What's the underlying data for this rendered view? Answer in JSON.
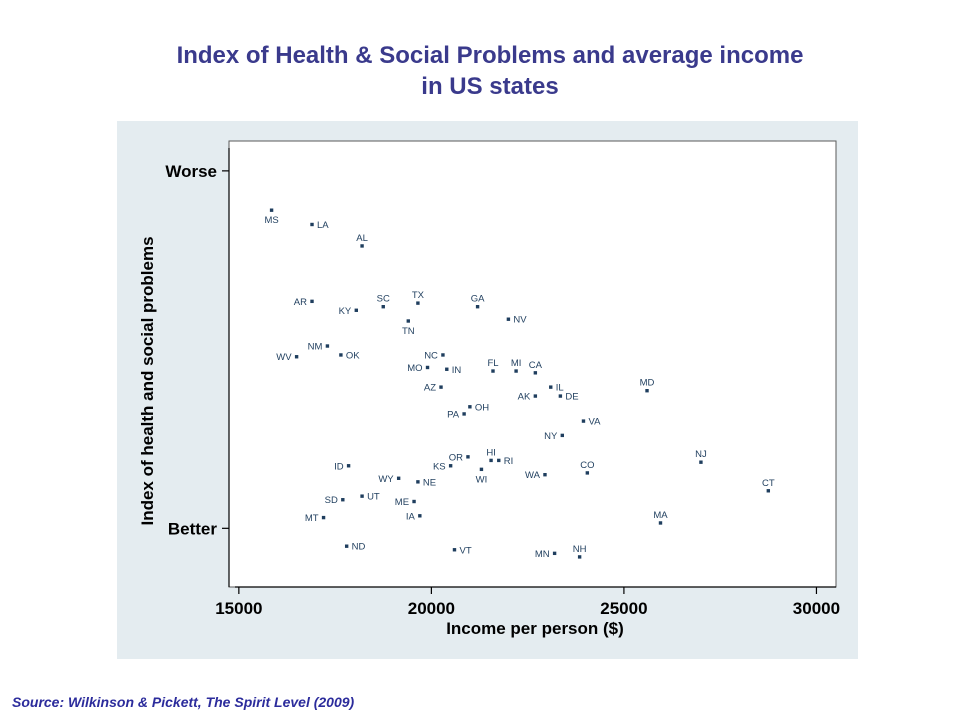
{
  "title": {
    "line1": "Index of Health & Social Problems and average income",
    "line2": "in US states"
  },
  "source": "Source: Wilkinson & Pickett, The Spirit Level (2009)",
  "colors": {
    "title": "#3a3a8c",
    "panel": "#e4ecf0",
    "plot": "#ffffff",
    "point": "#1f3e5e",
    "source": "#2c2c9c"
  },
  "chart_data": {
    "type": "scatter",
    "title": "Index of Health & Social Problems and average income in US states",
    "xlabel": "Income per person ($)",
    "ylabel": "Index of health and social problems",
    "xlim": [
      14900,
      30300
    ],
    "ylim": [
      -1.25,
      1.1
    ],
    "x_ticks": [
      15000,
      20000,
      25000,
      30000
    ],
    "x_tick_labels": [
      "15000",
      "20000",
      "25000",
      "30000"
    ],
    "y_ticks": [
      1,
      -1
    ],
    "y_tick_labels": [
      "Worse",
      "Better"
    ],
    "grid": false,
    "legend": "none",
    "points": [
      {
        "label": "MS",
        "x": 15850,
        "y": 0.78
      },
      {
        "label": "LA",
        "x": 16900,
        "y": 0.7
      },
      {
        "label": "AL",
        "x": 18200,
        "y": 0.58
      },
      {
        "label": "AR",
        "x": 16900,
        "y": 0.27
      },
      {
        "label": "KY",
        "x": 18050,
        "y": 0.22
      },
      {
        "label": "SC",
        "x": 18750,
        "y": 0.24
      },
      {
        "label": "TX",
        "x": 19650,
        "y": 0.26
      },
      {
        "label": "GA",
        "x": 21200,
        "y": 0.24
      },
      {
        "label": "NV",
        "x": 22000,
        "y": 0.17
      },
      {
        "label": "TN",
        "x": 19400,
        "y": 0.16
      },
      {
        "label": "NM",
        "x": 17300,
        "y": 0.02
      },
      {
        "label": "WV",
        "x": 16500,
        "y": -0.04
      },
      {
        "label": "OK",
        "x": 17650,
        "y": -0.03
      },
      {
        "label": "NC",
        "x": 20300,
        "y": -0.03
      },
      {
        "label": "MO",
        "x": 19900,
        "y": -0.1
      },
      {
        "label": "IN",
        "x": 20400,
        "y": -0.11
      },
      {
        "label": "FL",
        "x": 21600,
        "y": -0.12
      },
      {
        "label": "MI",
        "x": 22200,
        "y": -0.12
      },
      {
        "label": "CA",
        "x": 22700,
        "y": -0.13
      },
      {
        "label": "MD",
        "x": 25600,
        "y": -0.23
      },
      {
        "label": "AZ",
        "x": 20250,
        "y": -0.21
      },
      {
        "label": "IL",
        "x": 23100,
        "y": -0.21
      },
      {
        "label": "AK",
        "x": 22700,
        "y": -0.26
      },
      {
        "label": "DE",
        "x": 23350,
        "y": -0.26
      },
      {
        "label": "OH",
        "x": 21000,
        "y": -0.32
      },
      {
        "label": "PA",
        "x": 20850,
        "y": -0.36
      },
      {
        "label": "VA",
        "x": 23950,
        "y": -0.4
      },
      {
        "label": "NY",
        "x": 23400,
        "y": -0.48
      },
      {
        "label": "NJ",
        "x": 27000,
        "y": -0.63
      },
      {
        "label": "OR",
        "x": 20950,
        "y": -0.6
      },
      {
        "label": "HI",
        "x": 21550,
        "y": -0.62
      },
      {
        "label": "RI",
        "x": 21750,
        "y": -0.62
      },
      {
        "label": "ID",
        "x": 17850,
        "y": -0.65
      },
      {
        "label": "KS",
        "x": 20500,
        "y": -0.65
      },
      {
        "label": "WI",
        "x": 21300,
        "y": -0.67
      },
      {
        "label": "CO",
        "x": 24050,
        "y": -0.69
      },
      {
        "label": "WA",
        "x": 22950,
        "y": -0.7
      },
      {
        "label": "WY",
        "x": 19150,
        "y": -0.72
      },
      {
        "label": "NE",
        "x": 19650,
        "y": -0.74
      },
      {
        "label": "CT",
        "x": 28750,
        "y": -0.79
      },
      {
        "label": "UT",
        "x": 18200,
        "y": -0.82
      },
      {
        "label": "SD",
        "x": 17700,
        "y": -0.84
      },
      {
        "label": "ME",
        "x": 19550,
        "y": -0.85
      },
      {
        "label": "IA",
        "x": 19700,
        "y": -0.93
      },
      {
        "label": "MT",
        "x": 17200,
        "y": -0.94
      },
      {
        "label": "MA",
        "x": 25950,
        "y": -0.97
      },
      {
        "label": "ND",
        "x": 17800,
        "y": -1.1
      },
      {
        "label": "VT",
        "x": 20600,
        "y": -1.12
      },
      {
        "label": "MN",
        "x": 23200,
        "y": -1.14
      },
      {
        "label": "NH",
        "x": 23850,
        "y": -1.16
      }
    ]
  }
}
